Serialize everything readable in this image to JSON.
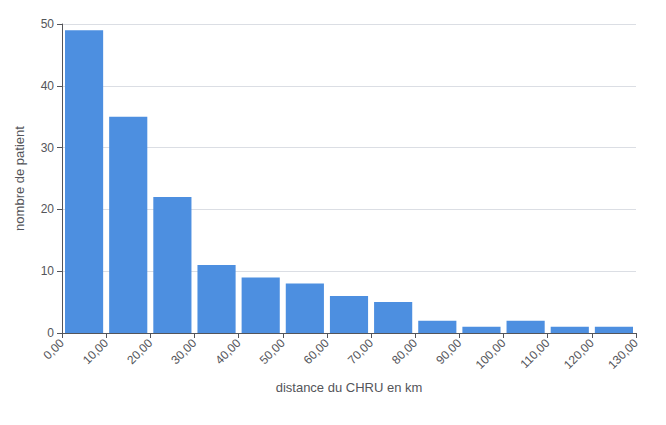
{
  "chart_data": {
    "type": "histogram",
    "bins": [
      0,
      10,
      20,
      30,
      40,
      50,
      60,
      70,
      80,
      90,
      100,
      110,
      120,
      130
    ],
    "values": [
      49,
      35,
      22,
      11,
      9,
      8,
      6,
      5,
      2,
      1,
      2,
      1,
      1
    ],
    "color": "#4d8fe0",
    "xlabel": "distance du CHRU en km",
    "ylabel": "nombre de patient",
    "xlim": [
      0,
      130
    ],
    "xticks": [
      {
        "value": 0,
        "label": "0,00"
      },
      {
        "value": 10,
        "label": "10,00"
      },
      {
        "value": 20,
        "label": "20,00"
      },
      {
        "value": 30,
        "label": "30,00"
      },
      {
        "value": 40,
        "label": "40,00"
      },
      {
        "value": 50,
        "label": "50,00"
      },
      {
        "value": 60,
        "label": "60,00"
      },
      {
        "value": 70,
        "label": "70,00"
      },
      {
        "value": 80,
        "label": "80,00"
      },
      {
        "value": 90,
        "label": "90,00"
      },
      {
        "value": 100,
        "label": "100,00"
      },
      {
        "value": 110,
        "label": "110,00"
      },
      {
        "value": 120,
        "label": "120,00"
      },
      {
        "value": 130,
        "label": "130,00"
      }
    ],
    "ylim": [
      0,
      50
    ],
    "yticks": [
      0,
      10,
      20,
      30,
      40,
      50
    ],
    "grid": true
  }
}
